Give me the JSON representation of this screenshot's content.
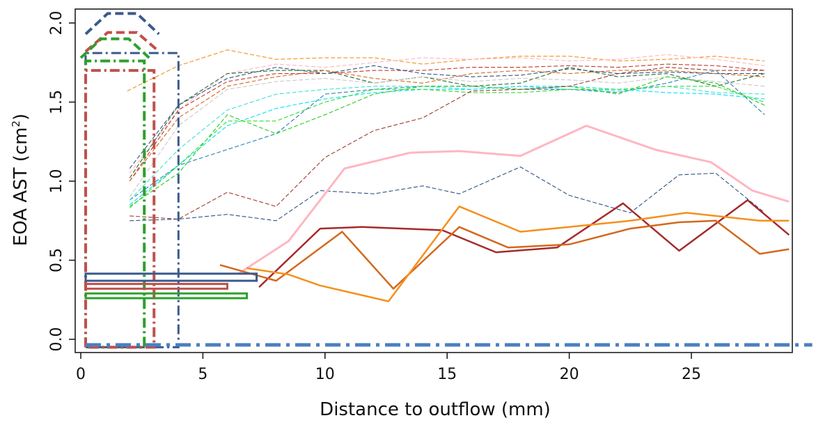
{
  "chart_data": {
    "type": "line",
    "xlabel": "Distance to outflow (mm)",
    "ylabel_parts": {
      "main": "EOA AST (cm",
      "sup": "2",
      "close": ")"
    },
    "xlim": [
      0,
      29
    ],
    "ylim": [
      -0.05,
      2.07
    ],
    "xticks": [
      0,
      5,
      10,
      15,
      20,
      25
    ],
    "yticks": [
      0.0,
      0.5,
      1.0,
      1.5,
      2.0
    ],
    "xtick_labels": [
      "0",
      "5",
      "10",
      "15",
      "20",
      "25"
    ],
    "ytick_labels": [
      "0.0",
      "0.5",
      "1.0",
      "1.5",
      "2.0"
    ],
    "grid": false,
    "series": [
      {
        "style": "dashed",
        "color": "#f5901e",
        "points": [
          [
            1.9,
            1.57
          ],
          [
            4,
            1.73
          ],
          [
            6,
            1.83
          ],
          [
            8,
            1.77
          ],
          [
            10,
            1.78
          ],
          [
            12,
            1.78
          ],
          [
            14,
            1.74
          ],
          [
            16,
            1.77
          ],
          [
            18,
            1.79
          ],
          [
            20,
            1.79
          ],
          [
            22,
            1.76
          ],
          [
            24,
            1.77
          ],
          [
            26,
            1.79
          ],
          [
            28,
            1.76
          ]
        ]
      },
      {
        "style": "dashed",
        "color": "#ffb6c1",
        "points": [
          [
            2,
            1.05
          ],
          [
            4,
            1.45
          ],
          [
            6,
            1.68
          ],
          [
            8,
            1.74
          ],
          [
            10,
            1.72
          ],
          [
            12,
            1.75
          ],
          [
            14,
            1.78
          ],
          [
            16,
            1.77
          ],
          [
            18,
            1.78
          ],
          [
            20,
            1.76
          ],
          [
            22,
            1.77
          ],
          [
            24,
            1.8
          ],
          [
            26,
            1.77
          ],
          [
            28,
            1.73
          ]
        ]
      },
      {
        "style": "dashed",
        "color": "#c0392b",
        "points": [
          [
            2,
            1.0
          ],
          [
            4,
            1.45
          ],
          [
            6,
            1.63
          ],
          [
            8,
            1.68
          ],
          [
            10,
            1.68
          ],
          [
            12,
            1.7
          ],
          [
            14,
            1.7
          ],
          [
            16,
            1.72
          ],
          [
            18,
            1.72
          ],
          [
            20,
            1.73
          ],
          [
            22,
            1.72
          ],
          [
            24,
            1.74
          ],
          [
            26,
            1.73
          ],
          [
            28,
            1.7
          ]
        ]
      },
      {
        "style": "dashed",
        "color": "#2c5282",
        "points": [
          [
            2,
            1.08
          ],
          [
            4,
            1.48
          ],
          [
            6,
            1.65
          ],
          [
            8,
            1.72
          ],
          [
            10,
            1.68
          ],
          [
            12,
            1.73
          ],
          [
            14,
            1.68
          ],
          [
            16,
            1.66
          ],
          [
            18,
            1.67
          ],
          [
            20,
            1.71
          ],
          [
            22,
            1.68
          ],
          [
            24,
            1.69
          ],
          [
            26,
            1.68
          ],
          [
            28,
            1.68
          ]
        ]
      },
      {
        "style": "dashed",
        "color": "#1e6b2e",
        "points": [
          [
            2,
            1.02
          ],
          [
            4,
            1.48
          ],
          [
            6,
            1.68
          ],
          [
            8,
            1.7
          ],
          [
            10,
            1.7
          ],
          [
            12,
            1.62
          ],
          [
            14,
            1.66
          ],
          [
            16,
            1.6
          ],
          [
            18,
            1.62
          ],
          [
            20,
            1.72
          ],
          [
            22,
            1.66
          ],
          [
            24,
            1.68
          ],
          [
            26,
            1.6
          ],
          [
            28,
            1.68
          ]
        ]
      },
      {
        "style": "dashed",
        "color": "#d2691e",
        "points": [
          [
            2,
            1.0
          ],
          [
            4,
            1.4
          ],
          [
            6,
            1.6
          ],
          [
            8,
            1.66
          ],
          [
            10,
            1.7
          ],
          [
            12,
            1.65
          ],
          [
            14,
            1.62
          ],
          [
            16,
            1.68
          ],
          [
            18,
            1.7
          ],
          [
            20,
            1.68
          ],
          [
            22,
            1.7
          ],
          [
            24,
            1.7
          ],
          [
            26,
            1.68
          ],
          [
            28,
            1.66
          ]
        ]
      },
      {
        "style": "dashed",
        "color": "#c8c8c8",
        "points": [
          [
            2,
            0.9
          ],
          [
            4,
            1.35
          ],
          [
            6,
            1.58
          ],
          [
            8,
            1.63
          ],
          [
            10,
            1.65
          ],
          [
            12,
            1.62
          ],
          [
            14,
            1.66
          ],
          [
            16,
            1.63
          ],
          [
            18,
            1.65
          ],
          [
            20,
            1.64
          ],
          [
            22,
            1.62
          ],
          [
            24,
            1.66
          ],
          [
            26,
            1.63
          ],
          [
            28,
            1.6
          ]
        ]
      },
      {
        "style": "dashed",
        "color": "#2a7fb8",
        "points": [
          [
            2,
            0.88
          ],
          [
            4,
            1.1
          ],
          [
            6,
            1.2
          ],
          [
            8,
            1.3
          ],
          [
            10,
            1.55
          ],
          [
            12,
            1.58
          ],
          [
            14,
            1.6
          ],
          [
            16,
            1.6
          ],
          [
            18,
            1.58
          ],
          [
            20,
            1.58
          ],
          [
            22,
            1.56
          ],
          [
            24,
            1.62
          ],
          [
            26,
            1.7
          ],
          [
            28,
            1.42
          ]
        ]
      },
      {
        "style": "dashed",
        "color": "#40e0d0",
        "points": [
          [
            2,
            0.88
          ],
          [
            4,
            1.2
          ],
          [
            6,
            1.45
          ],
          [
            8,
            1.55
          ],
          [
            10,
            1.58
          ],
          [
            12,
            1.6
          ],
          [
            14,
            1.6
          ],
          [
            16,
            1.58
          ],
          [
            18,
            1.6
          ],
          [
            20,
            1.58
          ],
          [
            22,
            1.57
          ],
          [
            24,
            1.6
          ],
          [
            26,
            1.56
          ],
          [
            28,
            1.55
          ]
        ]
      },
      {
        "style": "dashed",
        "color": "#00e0ff",
        "points": [
          [
            2,
            0.85
          ],
          [
            4,
            1.1
          ],
          [
            6,
            1.35
          ],
          [
            8,
            1.46
          ],
          [
            10,
            1.52
          ],
          [
            12,
            1.56
          ],
          [
            14,
            1.58
          ],
          [
            16,
            1.58
          ],
          [
            18,
            1.6
          ],
          [
            20,
            1.6
          ],
          [
            22,
            1.58
          ],
          [
            24,
            1.56
          ],
          [
            26,
            1.55
          ],
          [
            28,
            1.52
          ]
        ]
      },
      {
        "style": "dashed",
        "color": "#22cc22",
        "points": [
          [
            2,
            0.84
          ],
          [
            4,
            1.05
          ],
          [
            6,
            1.42
          ],
          [
            8,
            1.3
          ],
          [
            10,
            1.42
          ],
          [
            12,
            1.55
          ],
          [
            14,
            1.6
          ],
          [
            16,
            1.6
          ],
          [
            18,
            1.58
          ],
          [
            20,
            1.6
          ],
          [
            22,
            1.55
          ],
          [
            24,
            1.66
          ],
          [
            26,
            1.62
          ],
          [
            28,
            1.48
          ]
        ]
      },
      {
        "style": "dashed",
        "color": "#33dd33",
        "points": [
          [
            2,
            0.83
          ],
          [
            4,
            1.1
          ],
          [
            6,
            1.38
          ],
          [
            8,
            1.38
          ],
          [
            10,
            1.5
          ],
          [
            12,
            1.58
          ],
          [
            14,
            1.58
          ],
          [
            16,
            1.56
          ],
          [
            18,
            1.56
          ],
          [
            20,
            1.58
          ],
          [
            22,
            1.58
          ],
          [
            24,
            1.6
          ],
          [
            26,
            1.6
          ],
          [
            28,
            1.5
          ]
        ]
      },
      {
        "style": "dashed",
        "color": "#a0392f",
        "points": [
          [
            2,
            0.78
          ],
          [
            4,
            0.76
          ],
          [
            6,
            0.93
          ],
          [
            8,
            0.84
          ],
          [
            10,
            1.15
          ],
          [
            12,
            1.32
          ],
          [
            14,
            1.4
          ],
          [
            16,
            1.57
          ],
          [
            18,
            1.58
          ],
          [
            20,
            1.6
          ],
          [
            22,
            1.68
          ],
          [
            24,
            1.72
          ],
          [
            26,
            1.7
          ],
          [
            28,
            1.7
          ]
        ]
      },
      {
        "style": "dashed",
        "color": "#2c5282",
        "points": [
          [
            2,
            0.75
          ],
          [
            4,
            0.76
          ],
          [
            6,
            0.79
          ],
          [
            8,
            0.75
          ],
          [
            9.8,
            0.94
          ],
          [
            12,
            0.92
          ],
          [
            14,
            0.97
          ],
          [
            15.5,
            0.92
          ],
          [
            18,
            1.09
          ],
          [
            20,
            0.91
          ],
          [
            22.5,
            0.8
          ],
          [
            24.5,
            1.04
          ],
          [
            26,
            1.05
          ],
          [
            28,
            0.8
          ]
        ]
      },
      {
        "style": "solid",
        "color": "#ffb6c1",
        "width": 3,
        "points": [
          [
            6.5,
            0.42
          ],
          [
            8.5,
            0.62
          ],
          [
            10.8,
            1.08
          ],
          [
            13.5,
            1.18
          ],
          [
            15.5,
            1.19
          ],
          [
            18,
            1.16
          ],
          [
            20.7,
            1.35
          ],
          [
            23.5,
            1.2
          ],
          [
            25.8,
            1.12
          ],
          [
            27.5,
            0.94
          ],
          [
            29,
            0.87
          ]
        ]
      },
      {
        "style": "solid",
        "color": "#a52a2a",
        "width": 2.5,
        "points": [
          [
            7.3,
            0.33
          ],
          [
            9.8,
            0.7
          ],
          [
            11.5,
            0.71
          ],
          [
            14.8,
            0.69
          ],
          [
            17,
            0.55
          ],
          [
            19.5,
            0.58
          ],
          [
            22.2,
            0.86
          ],
          [
            24.5,
            0.56
          ],
          [
            27.3,
            0.88
          ],
          [
            29,
            0.66
          ]
        ]
      },
      {
        "style": "solid",
        "color": "#d2691e",
        "width": 2.5,
        "points": [
          [
            5.7,
            0.47
          ],
          [
            8,
            0.37
          ],
          [
            10.7,
            0.68
          ],
          [
            12.8,
            0.32
          ],
          [
            15.5,
            0.71
          ],
          [
            17.5,
            0.58
          ],
          [
            20,
            0.6
          ],
          [
            22.5,
            0.7
          ],
          [
            24.5,
            0.74
          ],
          [
            26,
            0.75
          ],
          [
            27.8,
            0.54
          ],
          [
            29,
            0.57
          ]
        ]
      },
      {
        "style": "solid",
        "color": "#f5901e",
        "width": 2.5,
        "points": [
          [
            6.8,
            0.45
          ],
          [
            8.5,
            0.41
          ],
          [
            9.8,
            0.34
          ],
          [
            12.6,
            0.24
          ],
          [
            15.5,
            0.84
          ],
          [
            18,
            0.68
          ],
          [
            20,
            0.71
          ],
          [
            22.5,
            0.75
          ],
          [
            24.8,
            0.8
          ],
          [
            27.8,
            0.75
          ],
          [
            29,
            0.75
          ]
        ]
      }
    ],
    "overlays": [
      {
        "shape": "dashdot-box",
        "color": "#3a5a8c",
        "x": [
          0.2,
          4.0
        ],
        "y": [
          -0.05,
          1.81
        ],
        "width": 3
      },
      {
        "shape": "dashdot-box",
        "color": "#2ca02c",
        "x": [
          0.2,
          2.6
        ],
        "y": [
          -0.05,
          1.76
        ],
        "width": 4
      },
      {
        "shape": "dashdot-box",
        "color": "#c0504d",
        "x": [
          0.2,
          3.0
        ],
        "y": [
          -0.05,
          1.7
        ],
        "width": 4
      },
      {
        "shape": "dashed-cap",
        "color": "#3a5a8c",
        "x": [
          0.2,
          3.2
        ],
        "y": [
          1.93,
          2.06
        ],
        "width": 4
      },
      {
        "shape": "dashed-cap",
        "color": "#c0504d",
        "x": [
          0.2,
          3.2
        ],
        "y": [
          1.82,
          1.94
        ],
        "width": 4
      },
      {
        "shape": "dashed-cap",
        "color": "#2ca02c",
        "x": [
          0.0,
          2.8
        ],
        "y": [
          1.78,
          1.9
        ],
        "width": 4
      },
      {
        "shape": "bar",
        "color": "#3a5a8c",
        "x": [
          0.2,
          7.2
        ],
        "y": [
          0.37,
          0.415
        ],
        "width": 3
      },
      {
        "shape": "bar",
        "color": "#c0504d",
        "x": [
          0.2,
          6.0
        ],
        "y": [
          0.32,
          0.35
        ],
        "width": 3
      },
      {
        "shape": "bar",
        "color": "#2ca02c",
        "x": [
          0.2,
          6.8
        ],
        "y": [
          0.26,
          0.29
        ],
        "width": 3
      },
      {
        "shape": "baseline",
        "color": "#4a7fc1",
        "y": -0.035,
        "x": [
          0.2,
          29.95
        ],
        "width": 5
      }
    ]
  }
}
